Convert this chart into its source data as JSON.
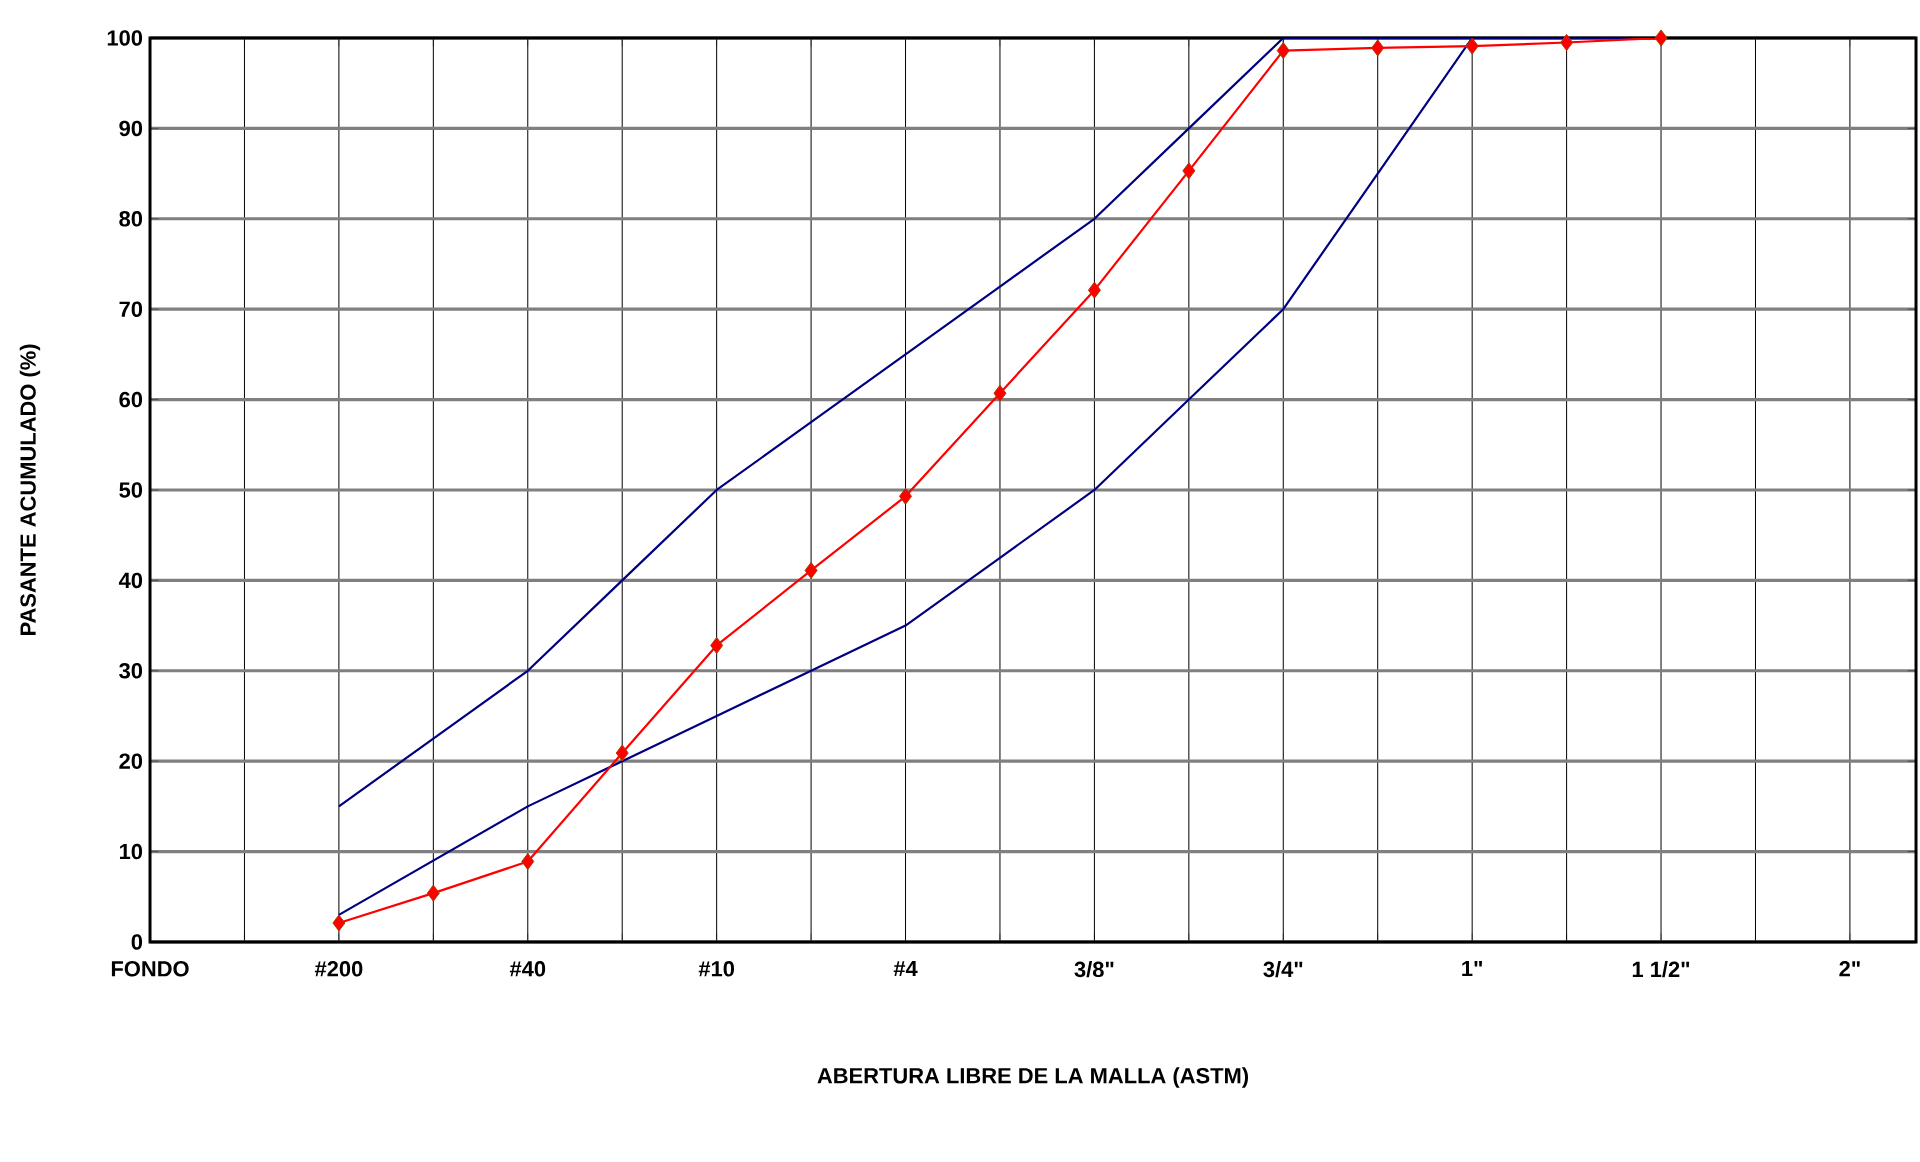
{
  "chart_data": {
    "type": "line",
    "xlabel": "ABERTURA LIBRE DE LA MALLA (ASTM)",
    "ylabel": "PASANTE ACUMULADO (%)",
    "categories": [
      "FONDO",
      null,
      "#200",
      null,
      "#40",
      null,
      "#10",
      null,
      "#4",
      null,
      "3/8\"",
      null,
      "3/4\"",
      null,
      "1\"",
      null,
      "1 1/2\"",
      null,
      "2\""
    ],
    "series": [
      {
        "color": "#000080",
        "marker": "none",
        "values": [
          null,
          null,
          15,
          22.5,
          30,
          40,
          50,
          57.5,
          65,
          72.5,
          80,
          90,
          100,
          100,
          100,
          100,
          100,
          null,
          null
        ]
      },
      {
        "color": "#000080",
        "marker": "none",
        "values": [
          null,
          null,
          3,
          9,
          15,
          20,
          25,
          30,
          35,
          42.5,
          50,
          60,
          70,
          85,
          100,
          100,
          100,
          null,
          null
        ]
      },
      {
        "color": "#ff0000",
        "marker": "diamond",
        "values": [
          null,
          null,
          2.1,
          5.4,
          8.9,
          20.9,
          32.8,
          41.1,
          49.3,
          60.7,
          72.1,
          85.3,
          98.6,
          98.9,
          99.1,
          99.5,
          100,
          null,
          null
        ]
      }
    ],
    "ylim": [
      0,
      100
    ],
    "yticks": [
      0,
      10,
      20,
      30,
      40,
      50,
      60,
      70,
      80,
      90,
      100
    ],
    "grid": true
  }
}
